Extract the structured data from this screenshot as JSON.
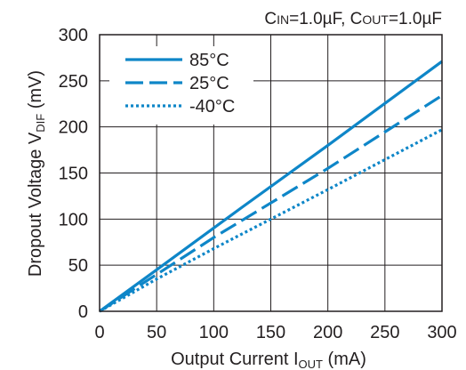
{
  "chart_data": {
    "type": "line",
    "annotation": {
      "cin_main": "C",
      "cin_sub": "IN",
      "cin_value": "=1.0µF, ",
      "cout_main": "C",
      "cout_sub": "OUT",
      "cout_value": "=1.0µF"
    },
    "xlabel": {
      "main": "Output Current I",
      "sub": "OUT",
      "unit": " (mA)"
    },
    "ylabel": {
      "main": "Dropout Voltage V",
      "sub": "DIF",
      "unit": " (mV)"
    },
    "xlim": [
      0,
      300
    ],
    "ylim": [
      0,
      300
    ],
    "xticks": [
      0,
      50,
      100,
      150,
      200,
      250,
      300
    ],
    "yticks": [
      0,
      50,
      100,
      150,
      200,
      250,
      300
    ],
    "grid": true,
    "legend_position": "top-left",
    "color": "#0e86c8",
    "series": [
      {
        "name": "85°C",
        "style": "solid",
        "x": [
          0,
          50,
          125,
          200,
          300
        ],
        "y": [
          0,
          45,
          113,
          180,
          271
        ]
      },
      {
        "name": "25°C",
        "style": "dashed",
        "x": [
          0,
          50,
          100,
          200,
          300
        ],
        "y": [
          0,
          40,
          80,
          155,
          234
        ]
      },
      {
        "name": "-40°C",
        "style": "dotted",
        "x": [
          0,
          50,
          100,
          200,
          300
        ],
        "y": [
          0,
          35,
          68,
          132,
          197
        ]
      }
    ]
  }
}
